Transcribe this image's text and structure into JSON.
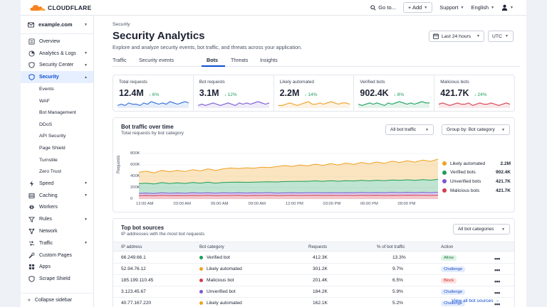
{
  "brand": {
    "name": "CLOUDFLARE",
    "accent": "#f6821f"
  },
  "topbar": {
    "goto": "Go to...",
    "add": "+ Add",
    "support": "Support",
    "language": "English"
  },
  "sidebar": {
    "account": "example.com",
    "items": [
      {
        "label": "Overview",
        "icon": "list-icon"
      },
      {
        "label": "Analytics & Logs",
        "icon": "chart-icon",
        "chevron": true
      },
      {
        "label": "Security Center",
        "icon": "shield-icon",
        "chevron": true
      },
      {
        "label": "Security",
        "icon": "shield-icon",
        "chevron": true,
        "active": true
      }
    ],
    "sub_items": [
      "Events",
      "WAF",
      "Bot Management",
      "DDoS",
      "API Security",
      "Page Shield",
      "Turnstile",
      "Zero Trust"
    ],
    "items2": [
      {
        "label": "Speed",
        "icon": "bolt-icon",
        "chevron": true
      },
      {
        "label": "Caching",
        "icon": "cache-icon",
        "chevron": true
      },
      {
        "label": "Workers",
        "icon": "workers-icon"
      },
      {
        "label": "Rules",
        "icon": "rules-icon",
        "chevron": true
      },
      {
        "label": "Network",
        "icon": "network-icon"
      },
      {
        "label": "Traffic",
        "icon": "traffic-icon",
        "chevron": true
      },
      {
        "label": "Custom Pages",
        "icon": "wrench-icon"
      },
      {
        "label": "Apps",
        "icon": "apps-icon"
      },
      {
        "label": "Scrape Shield",
        "icon": "shield-icon"
      }
    ],
    "collapse": "Collapse sidebar"
  },
  "page": {
    "breadcrumb": "Security",
    "title": "Security Analytics",
    "subtitle": "Explore and analyze security events, bot traffic, and threats across your application.",
    "time_range": "Last 24 hours",
    "timezone": "UTC",
    "tabs": [
      "Traffic",
      "Security events",
      "Bots",
      "Threats",
      "Insights"
    ]
  },
  "kpis": [
    {
      "label": "Total requests",
      "value": "12.4M",
      "delta": "↓ 6%",
      "color": "#2f6fd9",
      "trend": [
        5,
        6,
        5,
        7,
        6,
        6,
        5,
        7,
        6,
        8,
        7,
        6,
        7,
        6,
        8,
        7,
        6,
        7,
        8,
        7
      ]
    },
    {
      "label": "Bot requests",
      "value": "3.1M",
      "delta": "↓ 12%",
      "color": "#7a57d1",
      "trend": [
        5,
        6,
        5,
        6,
        7,
        6,
        5,
        6,
        7,
        6,
        5,
        7,
        6,
        7,
        6,
        7,
        8,
        7,
        6,
        7
      ]
    },
    {
      "label": "Likely automated",
      "value": "2.2M",
      "delta": "↓ 14%",
      "color": "#f0a020",
      "trend": [
        5,
        5,
        6,
        7,
        6,
        5,
        6,
        7,
        8,
        6,
        6,
        7,
        6,
        7,
        8,
        7,
        6,
        7,
        7,
        6
      ]
    },
    {
      "label": "Verified bots",
      "value": "902.4K",
      "delta": "↓ 8%",
      "color": "#1a9e5a",
      "trend": [
        6,
        5,
        6,
        7,
        6,
        7,
        6,
        5,
        7,
        6,
        7,
        8,
        7,
        6,
        7,
        6,
        7,
        8,
        7,
        7
      ]
    },
    {
      "label": "Malicious bots",
      "value": "421.7K",
      "delta": "↓ 24%",
      "color": "#d63b4a",
      "trend": [
        6,
        7,
        6,
        5,
        6,
        7,
        6,
        6,
        7,
        5,
        6,
        7,
        6,
        6,
        7,
        6,
        5,
        6,
        7,
        6
      ]
    }
  ],
  "chart": {
    "title": "Bot traffic over time",
    "subtitle": "Total requests by bot category",
    "filter": "All bot traffic",
    "group_by": "Group by: Bot category",
    "y_title": "Requests",
    "yticks": [
      "800K",
      "600K",
      "400K",
      "200K",
      "0"
    ],
    "xticks": [
      "12:00 AM",
      "03:00 AM",
      "06:00 AM",
      "09:00 AM",
      "12:00 PM",
      "03:00 PM",
      "06:00 PM",
      "09:00 PM"
    ]
  },
  "chart_data": {
    "type": "area",
    "ylim": [
      0,
      800000
    ],
    "series": [
      {
        "name": "Malicious bots",
        "color": "#d63b4a",
        "values": [
          60,
          62,
          58,
          65,
          60,
          63,
          59,
          64,
          61,
          66,
          60,
          63,
          62,
          65,
          60,
          64,
          62,
          66,
          61,
          63,
          65,
          62,
          64,
          66,
          63,
          65,
          62,
          64,
          63,
          66,
          64,
          65,
          63,
          66,
          64,
          67,
          65,
          66,
          64,
          67
        ]
      },
      {
        "name": "Unverified bots",
        "color": "#7a57d1",
        "values": [
          40,
          42,
          38,
          44,
          40,
          43,
          41,
          45,
          42,
          44,
          41,
          46,
          43,
          45,
          42,
          46,
          44,
          47,
          43,
          45,
          46,
          44,
          47,
          45,
          44,
          46,
          45,
          47,
          46,
          48,
          45,
          47,
          46,
          49,
          47,
          48,
          46,
          49,
          47,
          50
        ]
      },
      {
        "name": "Verified bots",
        "color": "#1a9e5a",
        "values": [
          170,
          175,
          168,
          180,
          172,
          178,
          174,
          182,
          176,
          185,
          178,
          182,
          190,
          186,
          192,
          188,
          194,
          190,
          196,
          200,
          198,
          205,
          200,
          208,
          204,
          210,
          206,
          212,
          208,
          215,
          210,
          218,
          214,
          220,
          216,
          222,
          218,
          225,
          220,
          228
        ]
      },
      {
        "name": "Likely automated",
        "color": "#f0a020",
        "values": [
          200,
          210,
          195,
          215,
          205,
          220,
          210,
          225,
          215,
          235,
          222,
          240,
          250,
          240,
          255,
          245,
          260,
          250,
          270,
          280,
          265,
          285,
          270,
          295,
          280,
          300,
          285,
          310,
          290,
          315,
          300,
          320,
          305,
          330,
          315,
          335,
          320,
          345,
          330,
          355
        ]
      }
    ],
    "legend": [
      {
        "name": "Likely automated",
        "value": "2.2M",
        "color": "#f0a020"
      },
      {
        "name": "Verified bots",
        "value": "902.4K",
        "color": "#1a9e5a"
      },
      {
        "name": "Unverified bots",
        "value": "421.7K",
        "color": "#7a57d1"
      },
      {
        "name": "Malicious bots",
        "value": "421.7K",
        "color": "#d63b4a"
      }
    ]
  },
  "sources": {
    "title": "Top bot sources",
    "subtitle": "IP addresses with the most bot requests",
    "filter": "All bot categories",
    "headers": [
      "IP address",
      "Bot category",
      "Requests",
      "% of bot traffic",
      "Action"
    ],
    "rows": [
      {
        "ip": "66.249.66.1",
        "category": "Verified bot",
        "color": "#1a9e5a",
        "requests": "412.3K",
        "pct": "13.3%",
        "action": "Allow",
        "kind": "allow"
      },
      {
        "ip": "52.94.76.12",
        "category": "Likely automated",
        "color": "#f0a020",
        "requests": "301.2K",
        "pct": "9.7%",
        "action": "Challenge",
        "kind": "chal"
      },
      {
        "ip": "185.199.110.45",
        "category": "Malicious bot",
        "color": "#d63b4a",
        "requests": "201.4K",
        "pct": "6.5%",
        "action": "Block",
        "kind": "block"
      },
      {
        "ip": "3.123.45.67",
        "category": "Unverified bot",
        "color": "#7a57d1",
        "requests": "184.2K",
        "pct": "5.9%",
        "action": "Challenge",
        "kind": "chal"
      },
      {
        "ip": "40.77.167.220",
        "category": "Likely automated",
        "color": "#f0a020",
        "requests": "162.1K",
        "pct": "5.2%",
        "action": "Challenge",
        "kind": "chal"
      }
    ],
    "view_all": "View all bot sources →"
  }
}
